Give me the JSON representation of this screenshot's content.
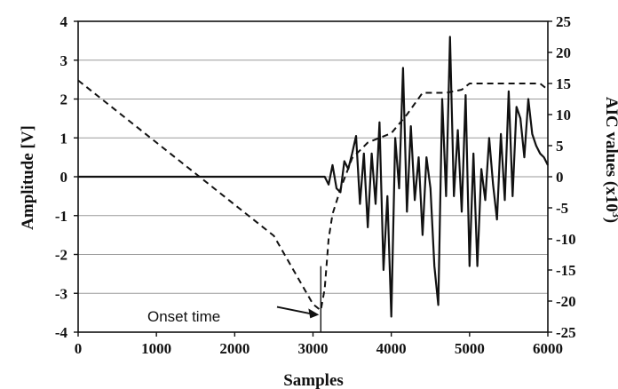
{
  "chart_data": {
    "type": "line",
    "title": "",
    "xlabel": "Samples",
    "ylabel_left": "Amplitude [V]",
    "ylabel_right_prefix": "AIC values (x10",
    "ylabel_right_sup": "3",
    "ylabel_right_suffix": ")",
    "xlim": [
      0,
      6000
    ],
    "ylim_left": [
      -4,
      4
    ],
    "ylim_right": [
      -25,
      25
    ],
    "xticks": [
      "0",
      "1000",
      "2000",
      "3000",
      "4000",
      "5000",
      "6000"
    ],
    "yticks_left": [
      "-4",
      "-3",
      "-2",
      "-1",
      "0",
      "1",
      "2",
      "3",
      "4"
    ],
    "yticks_right": [
      "-25",
      "-20",
      "-15",
      "-10",
      "-5",
      "0",
      "5",
      "10",
      "15",
      "20",
      "25"
    ],
    "grid": "horizontal",
    "annotation": {
      "text": "Onset time",
      "x": 3100
    },
    "series": [
      {
        "axis": "left",
        "style": "solid",
        "x": [
          0,
          3000,
          3150,
          3200,
          3250,
          3300,
          3350,
          3400,
          3450,
          3500,
          3550,
          3600,
          3650,
          3700,
          3750,
          3800,
          3850,
          3900,
          3950,
          4000,
          4050,
          4100,
          4150,
          4200,
          4250,
          4300,
          4350,
          4400,
          4450,
          4500,
          4550,
          4600,
          4650,
          4700,
          4750,
          4800,
          4850,
          4900,
          4950,
          5000,
          5050,
          5100,
          5150,
          5200,
          5250,
          5300,
          5350,
          5400,
          5450,
          5500,
          5550,
          5600,
          5650,
          5700,
          5750,
          5800,
          5850,
          5900,
          5950,
          6000
        ],
        "values": [
          0,
          0,
          0,
          -0.2,
          0.3,
          -0.3,
          -0.4,
          0.4,
          0.2,
          0.6,
          1.05,
          -0.7,
          0.6,
          -1.3,
          0.6,
          -0.7,
          1.4,
          -2.4,
          -0.5,
          -3.6,
          1.0,
          -0.3,
          2.8,
          -0.9,
          1.3,
          -0.6,
          0.5,
          -1.5,
          0.5,
          -0.3,
          -2.3,
          -3.3,
          2.0,
          -0.5,
          3.6,
          -0.5,
          1.2,
          -0.9,
          2.1,
          -2.3,
          0.6,
          -2.3,
          0.2,
          -0.6,
          1.0,
          -0.2,
          -1.1,
          1.1,
          -0.6,
          2.2,
          -0.5,
          1.8,
          1.5,
          0.5,
          2.0,
          1.1,
          0.8,
          0.6,
          0.5,
          0.3
        ],
        "x_fix": [
          0,
          3000,
          3150,
          3200,
          3250,
          3300,
          3350,
          3400,
          3450,
          3500,
          3550,
          3600,
          3650,
          3700,
          3750,
          3800,
          3850,
          3900,
          3950,
          4000,
          4050,
          4100,
          4150,
          4200,
          4250,
          4300,
          4350,
          4400,
          4450,
          4500,
          4550,
          4600,
          4650,
          4700,
          4750,
          4800,
          4850,
          4900,
          4950,
          5000,
          5050,
          5100,
          5150,
          5200,
          5250,
          5300,
          5350,
          5400,
          5450,
          5500,
          5550,
          5600,
          5650,
          5700,
          5750,
          5800,
          5850,
          5900,
          5950,
          6000
        ]
      },
      {
        "axis": "right",
        "style": "dashed",
        "x": [
          0,
          500,
          1000,
          1500,
          2000,
          2500,
          3000,
          3100,
          3150,
          3200,
          3250,
          3350,
          3500,
          3700,
          4000,
          4200,
          4400,
          4700,
          4900,
          5000,
          5300,
          5600,
          5900,
          6000
        ],
        "values": [
          15.5,
          10.5,
          5.5,
          0.5,
          -4.5,
          -9.5,
          -20.5,
          -21.5,
          -18,
          -10,
          -6,
          -2,
          3,
          5.5,
          7,
          10,
          13.5,
          13.5,
          14,
          15,
          15,
          15,
          15,
          14
        ]
      }
    ]
  }
}
